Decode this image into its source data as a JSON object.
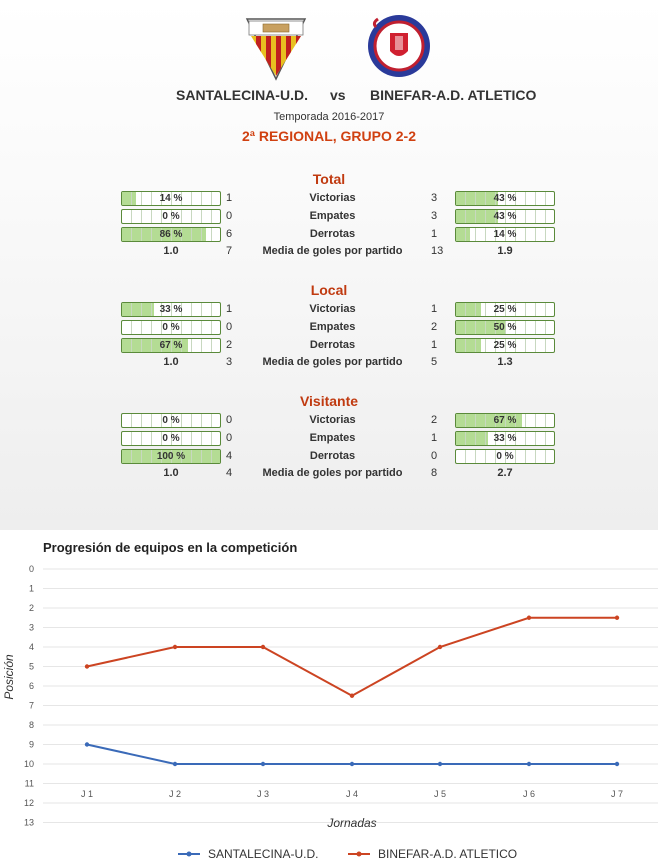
{
  "header": {
    "home_team": "SANTALECINA-U.D.",
    "vs": "vs",
    "away_team": "BINEFAR-A.D. ATLETICO",
    "season": "Temporada 2016-2017",
    "league": "2ª REGIONAL, GRUPO 2-2"
  },
  "colors": {
    "accent": "#c03a10",
    "bar_fill": "#b4dc94",
    "home_line": "#3a6ab8",
    "away_line": "#cc4422"
  },
  "sections": [
    {
      "title": "Total",
      "rows": [
        {
          "label": "Victorias",
          "home": "1",
          "away": "3",
          "home_pct": "14 %",
          "away_pct": "43 %",
          "home_frac": 0.14,
          "away_frac": 0.43
        },
        {
          "label": "Empates",
          "home": "0",
          "away": "3",
          "home_pct": "0 %",
          "away_pct": "43 %",
          "home_frac": 0.0,
          "away_frac": 0.43
        },
        {
          "label": "Derrotas",
          "home": "6",
          "away": "1",
          "home_pct": "86 %",
          "away_pct": "14 %",
          "home_frac": 0.86,
          "away_frac": 0.14
        }
      ],
      "avg": {
        "label": "Media de goles por partido",
        "home_avg": "1.0",
        "home_goals": "7",
        "away_goals": "13",
        "away_avg": "1.9"
      }
    },
    {
      "title": "Local",
      "rows": [
        {
          "label": "Victorias",
          "home": "1",
          "away": "1",
          "home_pct": "33 %",
          "away_pct": "25 %",
          "home_frac": 0.33,
          "away_frac": 0.25
        },
        {
          "label": "Empates",
          "home": "0",
          "away": "2",
          "home_pct": "0 %",
          "away_pct": "50 %",
          "home_frac": 0.0,
          "away_frac": 0.5
        },
        {
          "label": "Derrotas",
          "home": "2",
          "away": "1",
          "home_pct": "67 %",
          "away_pct": "25 %",
          "home_frac": 0.67,
          "away_frac": 0.25
        }
      ],
      "avg": {
        "label": "Media de goles por partido",
        "home_avg": "1.0",
        "home_goals": "3",
        "away_goals": "5",
        "away_avg": "1.3"
      }
    },
    {
      "title": "Visitante",
      "rows": [
        {
          "label": "Victorias",
          "home": "0",
          "away": "2",
          "home_pct": "0 %",
          "away_pct": "67 %",
          "home_frac": 0.0,
          "away_frac": 0.67
        },
        {
          "label": "Empates",
          "home": "0",
          "away": "1",
          "home_pct": "0 %",
          "away_pct": "33 %",
          "home_frac": 0.0,
          "away_frac": 0.33
        },
        {
          "label": "Derrotas",
          "home": "4",
          "away": "0",
          "home_pct": "100 %",
          "away_pct": "0 %",
          "home_frac": 1.0,
          "away_frac": 0.0
        }
      ],
      "avg": {
        "label": "Media de goles por partido",
        "home_avg": "1.0",
        "home_goals": "4",
        "away_goals": "8",
        "away_avg": "2.7"
      }
    }
  ],
  "chart_data": {
    "type": "line",
    "title": "Progresión de equipos en la competición",
    "xlabel": "Jornadas",
    "ylabel": "Posición",
    "categories": [
      "J 1",
      "J 2",
      "J 3",
      "J 4",
      "J 5",
      "J 6",
      "J 7"
    ],
    "y_ticks": [
      "0",
      "1",
      "2",
      "3",
      "4",
      "5",
      "6",
      "7",
      "8",
      "9",
      "10",
      "11",
      "12",
      "13"
    ],
    "ylim": [
      0,
      13
    ],
    "y_reversed": true,
    "grid": true,
    "legend_position": "bottom",
    "series": [
      {
        "name": "SANTALECINA-U.D.",
        "values": [
          9,
          10,
          10,
          10,
          10,
          10,
          10
        ]
      },
      {
        "name": "BINEFAR-A.D. ATLETICO",
        "values": [
          5,
          4,
          4,
          6.5,
          4,
          2.5,
          2.5
        ]
      }
    ]
  }
}
